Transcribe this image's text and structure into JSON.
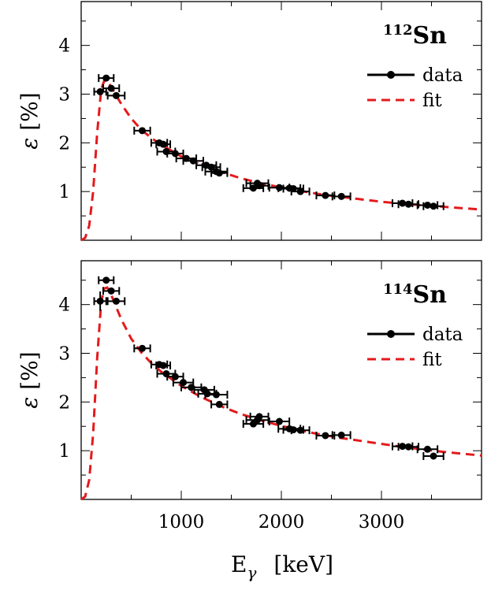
{
  "chart_data": [
    {
      "type": "scatter",
      "panel": "top",
      "isotope_mass": "112",
      "isotope_symbol": "Sn",
      "ylabel_symbol": "ε",
      "ylabel_unit": "[%]",
      "xlim": [
        0,
        4000
      ],
      "ylim": [
        0,
        4.9
      ],
      "yticks": [
        1,
        2,
        3,
        4
      ],
      "legend": [
        "data",
        "fit"
      ],
      "legend_position": "top-right",
      "series": [
        {
          "name": "data",
          "color": "#000000",
          "points": [
            {
              "x": 190,
              "y": 3.05,
              "xerr": 60
            },
            {
              "x": 250,
              "y": 3.33,
              "xerr": 75
            },
            {
              "x": 300,
              "y": 3.12,
              "xerr": 80
            },
            {
              "x": 350,
              "y": 2.97,
              "xerr": 85
            },
            {
              "x": 610,
              "y": 2.25,
              "xerr": 80
            },
            {
              "x": 780,
              "y": 2.0,
              "xerr": 80
            },
            {
              "x": 820,
              "y": 1.97,
              "xerr": 70
            },
            {
              "x": 850,
              "y": 1.82,
              "xerr": 90
            },
            {
              "x": 940,
              "y": 1.78,
              "xerr": 80
            },
            {
              "x": 1050,
              "y": 1.68,
              "xerr": 100
            },
            {
              "x": 1120,
              "y": 1.63,
              "xerr": 100
            },
            {
              "x": 1250,
              "y": 1.54,
              "xerr": 100
            },
            {
              "x": 1300,
              "y": 1.5,
              "xerr": 90
            },
            {
              "x": 1350,
              "y": 1.41,
              "xerr": 110
            },
            {
              "x": 1380,
              "y": 1.38,
              "xerr": 80
            },
            {
              "x": 1720,
              "y": 1.07,
              "xerr": 100
            },
            {
              "x": 1760,
              "y": 1.17,
              "xerr": 110
            },
            {
              "x": 1780,
              "y": 1.12,
              "xerr": 90
            },
            {
              "x": 1980,
              "y": 1.08,
              "xerr": 100
            },
            {
              "x": 2080,
              "y": 1.07,
              "xerr": 110
            },
            {
              "x": 2120,
              "y": 1.06,
              "xerr": 100
            },
            {
              "x": 2190,
              "y": 1.0,
              "xerr": 90
            },
            {
              "x": 2440,
              "y": 0.92,
              "xerr": 90
            },
            {
              "x": 2600,
              "y": 0.9,
              "xerr": 90
            },
            {
              "x": 3210,
              "y": 0.76,
              "xerr": 100
            },
            {
              "x": 3270,
              "y": 0.74,
              "xerr": 100
            },
            {
              "x": 3460,
              "y": 0.72,
              "xerr": 100
            },
            {
              "x": 3520,
              "y": 0.7,
              "xerr": 100
            }
          ]
        },
        {
          "name": "fit",
          "color": "#e41a1c",
          "style": "dashed",
          "points": [
            {
              "x": 0,
              "y": 0.0
            },
            {
              "x": 40,
              "y": 0.05
            },
            {
              "x": 80,
              "y": 0.3
            },
            {
              "x": 120,
              "y": 1.0
            },
            {
              "x": 160,
              "y": 2.2
            },
            {
              "x": 200,
              "y": 3.1
            },
            {
              "x": 230,
              "y": 3.27
            },
            {
              "x": 260,
              "y": 3.27
            },
            {
              "x": 300,
              "y": 3.15
            },
            {
              "x": 400,
              "y": 2.8
            },
            {
              "x": 500,
              "y": 2.5
            },
            {
              "x": 600,
              "y": 2.27
            },
            {
              "x": 700,
              "y": 2.1
            },
            {
              "x": 800,
              "y": 1.96
            },
            {
              "x": 1000,
              "y": 1.72
            },
            {
              "x": 1200,
              "y": 1.55
            },
            {
              "x": 1400,
              "y": 1.4
            },
            {
              "x": 1600,
              "y": 1.27
            },
            {
              "x": 1800,
              "y": 1.17
            },
            {
              "x": 2000,
              "y": 1.08
            },
            {
              "x": 2200,
              "y": 1.01
            },
            {
              "x": 2400,
              "y": 0.94
            },
            {
              "x": 2600,
              "y": 0.89
            },
            {
              "x": 2800,
              "y": 0.84
            },
            {
              "x": 3000,
              "y": 0.79
            },
            {
              "x": 3200,
              "y": 0.75
            },
            {
              "x": 3400,
              "y": 0.72
            },
            {
              "x": 3600,
              "y": 0.69
            },
            {
              "x": 3800,
              "y": 0.66
            },
            {
              "x": 4000,
              "y": 0.63
            }
          ]
        }
      ]
    },
    {
      "type": "scatter",
      "panel": "bottom",
      "isotope_mass": "114",
      "isotope_symbol": "Sn",
      "ylabel_symbol": "ε",
      "ylabel_unit": "[%]",
      "xlabel_symbol": "E",
      "xlabel_subscript": "γ",
      "xlabel_unit": "[keV]",
      "xlim": [
        0,
        4000
      ],
      "ylim": [
        0,
        4.9
      ],
      "xticks": [
        1000,
        2000,
        3000
      ],
      "yticks": [
        1,
        2,
        3,
        4
      ],
      "legend": [
        "data",
        "fit"
      ],
      "legend_position": "top-right",
      "series": [
        {
          "name": "data",
          "color": "#000000",
          "points": [
            {
              "x": 190,
              "y": 4.07,
              "xerr": 60,
              "yerr": 0.2
            },
            {
              "x": 250,
              "y": 4.5,
              "xerr": 75
            },
            {
              "x": 300,
              "y": 4.28,
              "xerr": 80
            },
            {
              "x": 350,
              "y": 4.07,
              "xerr": 85
            },
            {
              "x": 610,
              "y": 3.1,
              "xerr": 80
            },
            {
              "x": 780,
              "y": 2.77,
              "xerr": 80
            },
            {
              "x": 820,
              "y": 2.75,
              "xerr": 70
            },
            {
              "x": 850,
              "y": 2.58,
              "xerr": 90
            },
            {
              "x": 940,
              "y": 2.52,
              "xerr": 80
            },
            {
              "x": 1020,
              "y": 2.4,
              "xerr": 100
            },
            {
              "x": 1100,
              "y": 2.3,
              "xerr": 100
            },
            {
              "x": 1230,
              "y": 2.25,
              "xerr": 100
            },
            {
              "x": 1260,
              "y": 2.17,
              "xerr": 90
            },
            {
              "x": 1350,
              "y": 2.15,
              "xerr": 110
            },
            {
              "x": 1380,
              "y": 1.95,
              "xerr": 80
            },
            {
              "x": 1720,
              "y": 1.55,
              "xerr": 100
            },
            {
              "x": 1760,
              "y": 1.63,
              "xerr": 110
            },
            {
              "x": 1780,
              "y": 1.7,
              "xerr": 90
            },
            {
              "x": 1980,
              "y": 1.6,
              "xerr": 100
            },
            {
              "x": 2080,
              "y": 1.45,
              "xerr": 110
            },
            {
              "x": 2120,
              "y": 1.43,
              "xerr": 100
            },
            {
              "x": 2190,
              "y": 1.42,
              "xerr": 90
            },
            {
              "x": 2440,
              "y": 1.31,
              "xerr": 90
            },
            {
              "x": 2600,
              "y": 1.32,
              "xerr": 90
            },
            {
              "x": 3210,
              "y": 1.09,
              "xerr": 100
            },
            {
              "x": 3270,
              "y": 1.08,
              "xerr": 100
            },
            {
              "x": 3460,
              "y": 1.03,
              "xerr": 100
            },
            {
              "x": 3520,
              "y": 0.89,
              "xerr": 100
            }
          ]
        },
        {
          "name": "fit",
          "color": "#e41a1c",
          "style": "dashed",
          "points": [
            {
              "x": 0,
              "y": 0.0
            },
            {
              "x": 40,
              "y": 0.06
            },
            {
              "x": 80,
              "y": 0.4
            },
            {
              "x": 120,
              "y": 1.35
            },
            {
              "x": 160,
              "y": 2.9
            },
            {
              "x": 200,
              "y": 4.05
            },
            {
              "x": 230,
              "y": 4.33
            },
            {
              "x": 260,
              "y": 4.35
            },
            {
              "x": 300,
              "y": 4.2
            },
            {
              "x": 400,
              "y": 3.7
            },
            {
              "x": 500,
              "y": 3.3
            },
            {
              "x": 600,
              "y": 3.02
            },
            {
              "x": 700,
              "y": 2.8
            },
            {
              "x": 800,
              "y": 2.62
            },
            {
              "x": 1000,
              "y": 2.33
            },
            {
              "x": 1200,
              "y": 2.1
            },
            {
              "x": 1400,
              "y": 1.91
            },
            {
              "x": 1600,
              "y": 1.75
            },
            {
              "x": 1800,
              "y": 1.62
            },
            {
              "x": 2000,
              "y": 1.51
            },
            {
              "x": 2200,
              "y": 1.41
            },
            {
              "x": 2400,
              "y": 1.33
            },
            {
              "x": 2600,
              "y": 1.26
            },
            {
              "x": 2800,
              "y": 1.2
            },
            {
              "x": 3000,
              "y": 1.14
            },
            {
              "x": 3200,
              "y": 1.08
            },
            {
              "x": 3400,
              "y": 1.03
            },
            {
              "x": 3600,
              "y": 0.98
            },
            {
              "x": 3800,
              "y": 0.94
            },
            {
              "x": 4000,
              "y": 0.9
            }
          ]
        }
      ]
    }
  ]
}
